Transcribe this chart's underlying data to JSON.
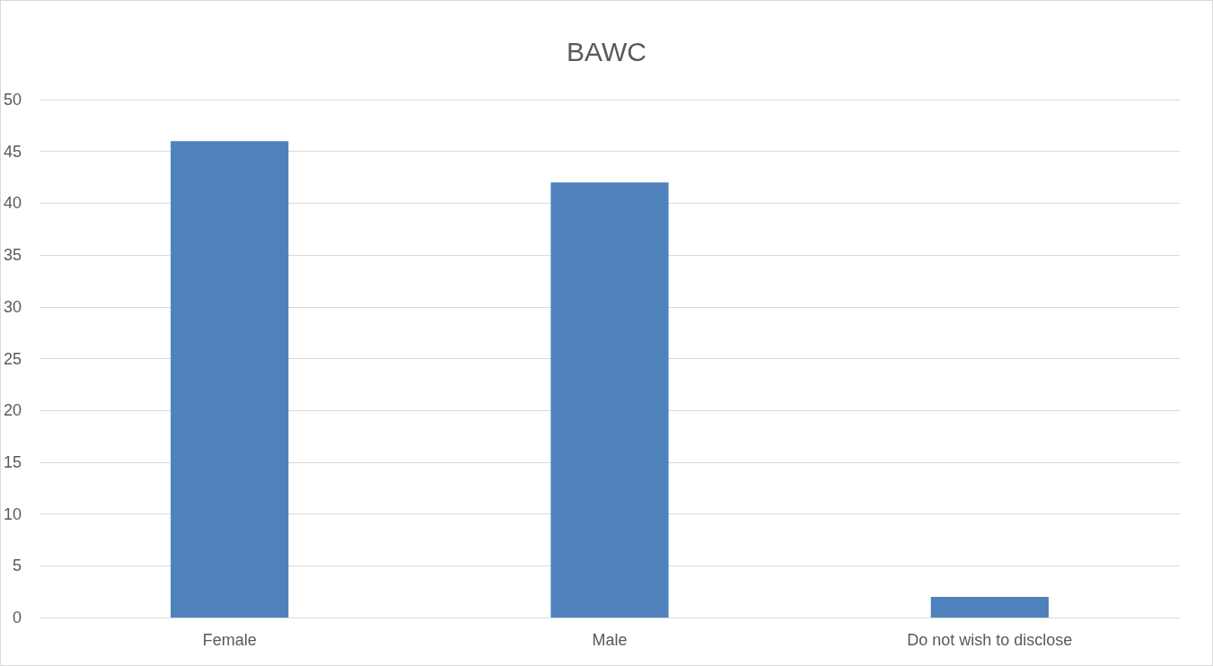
{
  "chart_data": {
    "type": "bar",
    "title": "BAWC",
    "categories": [
      "Female",
      "Male",
      "Do not wish to disclose"
    ],
    "values": [
      46,
      42,
      2
    ],
    "color": "#4f81bd",
    "ylim": [
      0,
      50
    ],
    "yticks": [
      0,
      5,
      10,
      15,
      20,
      25,
      30,
      35,
      40,
      45,
      50
    ],
    "grid": "y"
  }
}
